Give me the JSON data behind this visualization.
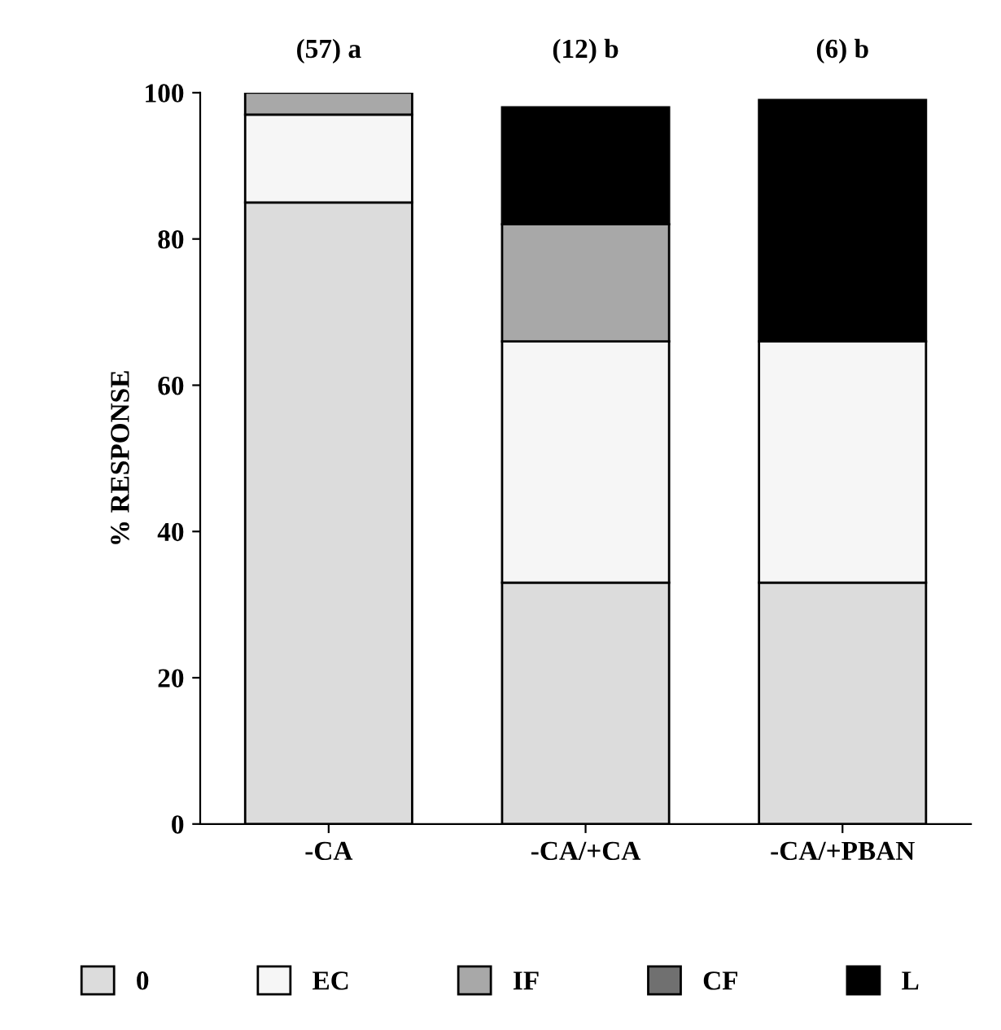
{
  "chart_data": {
    "type": "bar",
    "stacked": true,
    "ylabel": "% RESPONSE",
    "categories": [
      "-CA",
      "-CA/+CA",
      "-CA/+PBAN"
    ],
    "series": [
      {
        "name": "0",
        "color": "#dcdcdc",
        "values": [
          85,
          33,
          33
        ]
      },
      {
        "name": "EC",
        "color": "#f6f6f6",
        "values": [
          12,
          33,
          33
        ]
      },
      {
        "name": "IF",
        "color": "#a8a8a8",
        "values": [
          3,
          16,
          null
        ]
      },
      {
        "name": "CF",
        "color": "#707070",
        "values": [
          null,
          null,
          null
        ]
      },
      {
        "name": "L",
        "color": "#000000",
        "values": [
          null,
          16,
          33
        ]
      }
    ],
    "annotations": [
      "(57) a",
      "(12) b",
      "(6) b"
    ],
    "ylim": [
      0,
      100
    ],
    "yticks": [
      0,
      20,
      40,
      60,
      80,
      100
    ],
    "legend": "bottom"
  }
}
